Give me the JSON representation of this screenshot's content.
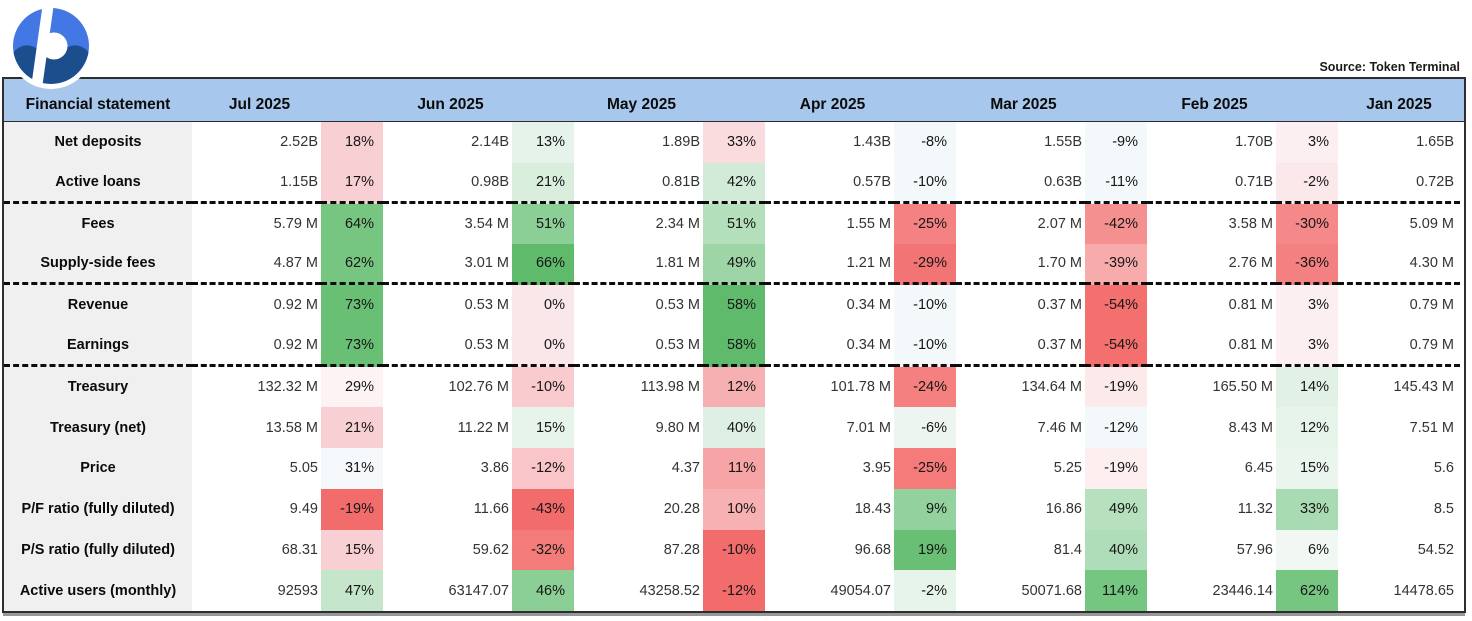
{
  "source_credit": "Source: Token Terminal",
  "logo": {
    "name": "protocol-logo",
    "color_top": "#4377e3",
    "color_bottom": "#1c4e8d"
  },
  "chart_data": {
    "type": "table",
    "header_label": "Financial statement",
    "source": "Source: Token Terminal",
    "legend": "percent cells are a red-green heatmap of month-over-month change",
    "columns": [
      "Jul 2025",
      "Jun 2025",
      "May 2025",
      "Apr 2025",
      "Mar 2025",
      "Feb 2025",
      "Jan 2025"
    ],
    "header_bg": "#a7c8ec",
    "label_bg": "#f0f0f0",
    "rows": [
      {
        "label": "Net deposits",
        "sep": false,
        "jan": "1.65B",
        "cells": [
          {
            "v": "2.52B",
            "p": "18%",
            "bg": "#f8cfd2"
          },
          {
            "v": "2.14B",
            "p": "13%",
            "bg": "#e6f3ea"
          },
          {
            "v": "1.89B",
            "p": "33%",
            "bg": "#fadcdf"
          },
          {
            "v": "1.43B",
            "p": "-8%",
            "bg": "#f3f8fa"
          },
          {
            "v": "1.55B",
            "p": "-9%",
            "bg": "#f3f8fa"
          },
          {
            "v": "1.70B",
            "p": "3%",
            "bg": "#fceff1"
          }
        ]
      },
      {
        "label": "Active loans",
        "sep": true,
        "jan": "0.72B",
        "cells": [
          {
            "v": "1.15B",
            "p": "17%",
            "bg": "#f8cfd2"
          },
          {
            "v": "0.98B",
            "p": "21%",
            "bg": "#d9eedd"
          },
          {
            "v": "0.81B",
            "p": "42%",
            "bg": "#d2ebd8"
          },
          {
            "v": "0.57B",
            "p": "-10%",
            "bg": "#f3f8fa"
          },
          {
            "v": "0.63B",
            "p": "-11%",
            "bg": "#f3f8fa"
          },
          {
            "v": "0.71B",
            "p": "-2%",
            "bg": "#fae8ea"
          }
        ]
      },
      {
        "label": "Fees",
        "sep": false,
        "jan": "5.09 M",
        "cells": [
          {
            "v": "5.79 M",
            "p": "64%",
            "bg": "#76c682"
          },
          {
            "v": "3.54 M",
            "p": "51%",
            "bg": "#8bce96"
          },
          {
            "v": "2.34 M",
            "p": "51%",
            "bg": "#b3dfbb"
          },
          {
            "v": "1.55 M",
            "p": "-25%",
            "bg": "#f58282"
          },
          {
            "v": "2.07 M",
            "p": "-42%",
            "bg": "#f49090"
          },
          {
            "v": "3.58 M",
            "p": "-30%",
            "bg": "#f58888"
          }
        ]
      },
      {
        "label": "Supply-side fees",
        "sep": true,
        "jan": "4.30 M",
        "cells": [
          {
            "v": "4.87 M",
            "p": "62%",
            "bg": "#76c682"
          },
          {
            "v": "3.01 M",
            "p": "66%",
            "bg": "#5fba6c"
          },
          {
            "v": "1.81 M",
            "p": "49%",
            "bg": "#9dd5a7"
          },
          {
            "v": "1.21 M",
            "p": "-29%",
            "bg": "#f37474"
          },
          {
            "v": "1.70 M",
            "p": "-39%",
            "bg": "#f8abab"
          },
          {
            "v": "2.76 M",
            "p": "-36%",
            "bg": "#f48181"
          }
        ]
      },
      {
        "label": "Revenue",
        "sep": false,
        "jan": "0.79 M",
        "cells": [
          {
            "v": "0.92 M",
            "p": "73%",
            "bg": "#69bf74"
          },
          {
            "v": "0.53 M",
            "p": "0%",
            "bg": "#fae7ea"
          },
          {
            "v": "0.53 M",
            "p": "58%",
            "bg": "#5fba6c"
          },
          {
            "v": "0.34 M",
            "p": "-10%",
            "bg": "#f3f8fa"
          },
          {
            "v": "0.37 M",
            "p": "-54%",
            "bg": "#f3706e"
          },
          {
            "v": "0.81 M",
            "p": "3%",
            "bg": "#fceff1"
          }
        ]
      },
      {
        "label": "Earnings",
        "sep": true,
        "jan": "0.79 M",
        "cells": [
          {
            "v": "0.92 M",
            "p": "73%",
            "bg": "#69bf74"
          },
          {
            "v": "0.53 M",
            "p": "0%",
            "bg": "#fae7ea"
          },
          {
            "v": "0.53 M",
            "p": "58%",
            "bg": "#5fba6c"
          },
          {
            "v": "0.34 M",
            "p": "-10%",
            "bg": "#f3f8fa"
          },
          {
            "v": "0.37 M",
            "p": "-54%",
            "bg": "#f3706e"
          },
          {
            "v": "0.81 M",
            "p": "3%",
            "bg": "#fceff1"
          }
        ]
      },
      {
        "label": "Treasury",
        "sep": false,
        "jan": "145.43 M",
        "cells": [
          {
            "v": "132.32 M",
            "p": "29%",
            "bg": "#fdf3f4"
          },
          {
            "v": "102.76 M",
            "p": "-10%",
            "bg": "#f9cbce"
          },
          {
            "v": "113.98 M",
            "p": "12%",
            "bg": "#f7b0b2"
          },
          {
            "v": "101.78 M",
            "p": "-24%",
            "bg": "#f58080"
          },
          {
            "v": "134.64 M",
            "p": "-19%",
            "bg": "#fce9ea"
          },
          {
            "v": "165.50 M",
            "p": "14%",
            "bg": "#e2f1e6"
          }
        ]
      },
      {
        "label": "Treasury (net)",
        "sep": false,
        "jan": "7.51 M",
        "cells": [
          {
            "v": "13.58 M",
            "p": "21%",
            "bg": "#f8cfd2"
          },
          {
            "v": "11.22 M",
            "p": "15%",
            "bg": "#e7f4ea"
          },
          {
            "v": "9.80 M",
            "p": "40%",
            "bg": "#def0e3"
          },
          {
            "v": "7.01 M",
            "p": "-6%",
            "bg": "#edf5f0"
          },
          {
            "v": "7.46 M",
            "p": "-12%",
            "bg": "#f3f8fa"
          },
          {
            "v": "8.43 M",
            "p": "12%",
            "bg": "#e7f4ea"
          }
        ]
      },
      {
        "label": "Price",
        "sep": false,
        "jan": "5.6",
        "cells": [
          {
            "v": "5.05",
            "p": "31%",
            "bg": "#f6f9fb"
          },
          {
            "v": "3.86",
            "p": "-12%",
            "bg": "#f9c5c8"
          },
          {
            "v": "4.37",
            "p": "11%",
            "bg": "#f7a4a6"
          },
          {
            "v": "3.95",
            "p": "-25%",
            "bg": "#f57a7a"
          },
          {
            "v": "5.25",
            "p": "-19%",
            "bg": "#fdeef0"
          },
          {
            "v": "6.45",
            "p": "15%",
            "bg": "#eaf5ed"
          }
        ]
      },
      {
        "label": "P/F ratio (fully diluted)",
        "sep": false,
        "jan": "8.5",
        "cells": [
          {
            "v": "9.49",
            "p": "-19%",
            "bg": "#f26c6c"
          },
          {
            "v": "11.66",
            "p": "-43%",
            "bg": "#f26c6c"
          },
          {
            "v": "20.28",
            "p": "10%",
            "bg": "#f8b1b3"
          },
          {
            "v": "18.43",
            "p": "9%",
            "bg": "#93d29f"
          },
          {
            "v": "16.86",
            "p": "49%",
            "bg": "#b6e0be"
          },
          {
            "v": "11.32",
            "p": "33%",
            "bg": "#a9dbb3"
          }
        ]
      },
      {
        "label": "P/S ratio (fully diluted)",
        "sep": false,
        "jan": "54.52",
        "cells": [
          {
            "v": "68.31",
            "p": "15%",
            "bg": "#f8cfd2"
          },
          {
            "v": "59.62",
            "p": "-32%",
            "bg": "#f37c7b"
          },
          {
            "v": "87.28",
            "p": "-10%",
            "bg": "#f26c6c"
          },
          {
            "v": "96.68",
            "p": "19%",
            "bg": "#69bf74"
          },
          {
            "v": "81.4",
            "p": "40%",
            "bg": "#b0ddb9"
          },
          {
            "v": "57.96",
            "p": "6%",
            "bg": "#f1f8f3"
          }
        ]
      },
      {
        "label": "Active users (monthly)",
        "sep": false,
        "jan": "14478.65",
        "cells": [
          {
            "v": "92593",
            "p": "47%",
            "bg": "#c6e6cc"
          },
          {
            "v": "63147.07",
            "p": "46%",
            "bg": "#8bce96"
          },
          {
            "v": "43258.52",
            "p": "-12%",
            "bg": "#f26c6c"
          },
          {
            "v": "49054.07",
            "p": "-2%",
            "bg": "#e7f4ea"
          },
          {
            "v": "50071.68",
            "p": "114%",
            "bg": "#74c681"
          },
          {
            "v": "23446.14",
            "p": "62%",
            "bg": "#76c682"
          }
        ]
      }
    ]
  }
}
